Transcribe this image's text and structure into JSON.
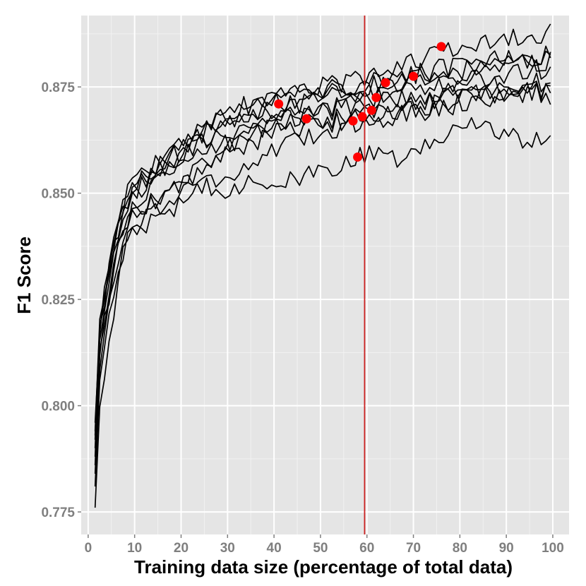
{
  "chart_data": {
    "type": "line",
    "title": "",
    "xlabel": "Training data size (percentage of total data)",
    "ylabel": "F1 Score",
    "xlim": [
      -1.5,
      103.5
    ],
    "ylim": [
      0.7697,
      0.8918
    ],
    "x_ticks": [
      0,
      10,
      20,
      30,
      40,
      50,
      60,
      70,
      80,
      90,
      100
    ],
    "y_ticks": [
      0.775,
      0.8,
      0.825,
      0.85,
      0.875
    ],
    "y_tick_labels": [
      "0.775",
      "0.800",
      "0.825",
      "0.850",
      "0.875"
    ],
    "grid": true,
    "legend": "none",
    "vertical_line": {
      "x": 59.5,
      "color": "#cc2222"
    },
    "best_points": [
      {
        "x": 41,
        "y": 0.871
      },
      {
        "x": 47,
        "y": 0.8675
      },
      {
        "x": 57,
        "y": 0.867
      },
      {
        "x": 58,
        "y": 0.8585
      },
      {
        "x": 59,
        "y": 0.868
      },
      {
        "x": 61,
        "y": 0.8695
      },
      {
        "x": 62,
        "y": 0.8725
      },
      {
        "x": 64,
        "y": 0.876
      },
      {
        "x": 70,
        "y": 0.8775
      },
      {
        "x": 76,
        "y": 0.8845
      }
    ],
    "series_anchors": [
      {
        "x": [
          1.5,
          2.5,
          4,
          6,
          8,
          10,
          15,
          20,
          25,
          30,
          35,
          40,
          45,
          50,
          55,
          60,
          65,
          70,
          75,
          80,
          85,
          90,
          95,
          100
        ],
        "y": [
          0.776,
          0.8,
          0.812,
          0.826,
          0.838,
          0.842,
          0.846,
          0.85,
          0.852,
          0.851,
          0.853,
          0.852,
          0.853,
          0.855,
          0.857,
          0.859,
          0.858,
          0.859,
          0.862,
          0.866,
          0.867,
          0.864,
          0.861,
          0.866
        ]
      },
      {
        "x": [
          1.5,
          2.5,
          4,
          6,
          8,
          10,
          15,
          20,
          25,
          30,
          35,
          40,
          45,
          50,
          55,
          60,
          65,
          70,
          75,
          80,
          85,
          90,
          95,
          100
        ],
        "y": [
          0.781,
          0.806,
          0.818,
          0.83,
          0.838,
          0.842,
          0.844,
          0.848,
          0.853,
          0.854,
          0.857,
          0.86,
          0.862,
          0.864,
          0.866,
          0.867,
          0.868,
          0.869,
          0.87,
          0.871,
          0.872,
          0.873,
          0.874,
          0.874
        ]
      },
      {
        "x": [
          1.5,
          2.5,
          4,
          6,
          8,
          10,
          15,
          20,
          25,
          30,
          35,
          40,
          45,
          50,
          55,
          60,
          65,
          70,
          75,
          80,
          85,
          90,
          95,
          100
        ],
        "y": [
          0.784,
          0.808,
          0.82,
          0.833,
          0.842,
          0.846,
          0.849,
          0.852,
          0.856,
          0.859,
          0.862,
          0.864,
          0.865,
          0.866,
          0.867,
          0.868,
          0.869,
          0.87,
          0.871,
          0.872,
          0.873,
          0.874,
          0.874,
          0.875
        ]
      },
      {
        "x": [
          1.5,
          2.5,
          4,
          6,
          8,
          10,
          15,
          20,
          25,
          30,
          35,
          40,
          45,
          50,
          55,
          60,
          65,
          70,
          75,
          80,
          85,
          90,
          95,
          100
        ],
        "y": [
          0.786,
          0.811,
          0.823,
          0.835,
          0.843,
          0.846,
          0.848,
          0.853,
          0.857,
          0.861,
          0.864,
          0.866,
          0.867,
          0.867,
          0.868,
          0.869,
          0.87,
          0.871,
          0.872,
          0.873,
          0.874,
          0.874,
          0.874,
          0.873
        ]
      },
      {
        "x": [
          1.5,
          2.5,
          4,
          6,
          8,
          10,
          15,
          20,
          25,
          30,
          35,
          40,
          45,
          50,
          55,
          60,
          65,
          70,
          75,
          80,
          85,
          90,
          95,
          100
        ],
        "y": [
          0.788,
          0.812,
          0.824,
          0.836,
          0.843,
          0.848,
          0.852,
          0.856,
          0.86,
          0.862,
          0.865,
          0.867,
          0.868,
          0.869,
          0.87,
          0.871,
          0.872,
          0.872,
          0.873,
          0.874,
          0.875,
          0.875,
          0.876,
          0.876
        ]
      },
      {
        "x": [
          1.5,
          2.5,
          4,
          6,
          8,
          10,
          15,
          20,
          25,
          30,
          35,
          40,
          45,
          50,
          55,
          60,
          65,
          70,
          75,
          80,
          85,
          90,
          95,
          100
        ],
        "y": [
          0.79,
          0.814,
          0.826,
          0.838,
          0.845,
          0.85,
          0.854,
          0.858,
          0.862,
          0.864,
          0.866,
          0.868,
          0.869,
          0.87,
          0.871,
          0.872,
          0.873,
          0.874,
          0.875,
          0.876,
          0.877,
          0.878,
          0.879,
          0.879
        ]
      },
      {
        "x": [
          1.5,
          2.5,
          4,
          6,
          8,
          10,
          15,
          20,
          25,
          30,
          35,
          40,
          45,
          50,
          55,
          60,
          65,
          70,
          75,
          80,
          85,
          90,
          95,
          100
        ],
        "y": [
          0.792,
          0.816,
          0.828,
          0.84,
          0.846,
          0.85,
          0.855,
          0.859,
          0.863,
          0.866,
          0.868,
          0.87,
          0.871,
          0.872,
          0.873,
          0.874,
          0.875,
          0.876,
          0.877,
          0.878,
          0.879,
          0.88,
          0.881,
          0.881
        ]
      },
      {
        "x": [
          1.5,
          2.5,
          4,
          6,
          8,
          10,
          15,
          20,
          25,
          30,
          35,
          40,
          45,
          50,
          55,
          60,
          65,
          70,
          75,
          80,
          85,
          90,
          95,
          100
        ],
        "y": [
          0.793,
          0.817,
          0.829,
          0.84,
          0.847,
          0.851,
          0.856,
          0.86,
          0.864,
          0.867,
          0.869,
          0.871,
          0.872,
          0.873,
          0.874,
          0.875,
          0.876,
          0.877,
          0.878,
          0.879,
          0.88,
          0.881,
          0.882,
          0.883
        ]
      },
      {
        "x": [
          1.5,
          2.5,
          4,
          6,
          8,
          10,
          15,
          20,
          25,
          30,
          35,
          40,
          45,
          50,
          55,
          60,
          65,
          70,
          75,
          80,
          85,
          90,
          95,
          100
        ],
        "y": [
          0.794,
          0.818,
          0.83,
          0.841,
          0.848,
          0.852,
          0.857,
          0.861,
          0.865,
          0.868,
          0.87,
          0.872,
          0.873,
          0.874,
          0.875,
          0.876,
          0.877,
          0.878,
          0.879,
          0.88,
          0.881,
          0.882,
          0.883,
          0.882
        ]
      },
      {
        "x": [
          1.5,
          2.5,
          4,
          6,
          8,
          10,
          15,
          20,
          25,
          30,
          35,
          40,
          45,
          50,
          55,
          60,
          65,
          70,
          75,
          80,
          85,
          90,
          95,
          100
        ],
        "y": [
          0.796,
          0.819,
          0.831,
          0.842,
          0.849,
          0.853,
          0.858,
          0.862,
          0.866,
          0.869,
          0.871,
          0.873,
          0.874,
          0.875,
          0.876,
          0.877,
          0.879,
          0.881,
          0.883,
          0.884,
          0.885,
          0.886,
          0.887,
          0.888
        ]
      }
    ],
    "colors": {
      "panel": "#e5e5e5",
      "grid_major": "#ffffff",
      "grid_minor": "#f2f2f2",
      "line": "#000000",
      "point": "#ff0000",
      "vline": "#cc2222",
      "tick_label": "#7f7f7f",
      "tick_mark": "#7f7f7f",
      "axis_title": "#000000"
    }
  }
}
